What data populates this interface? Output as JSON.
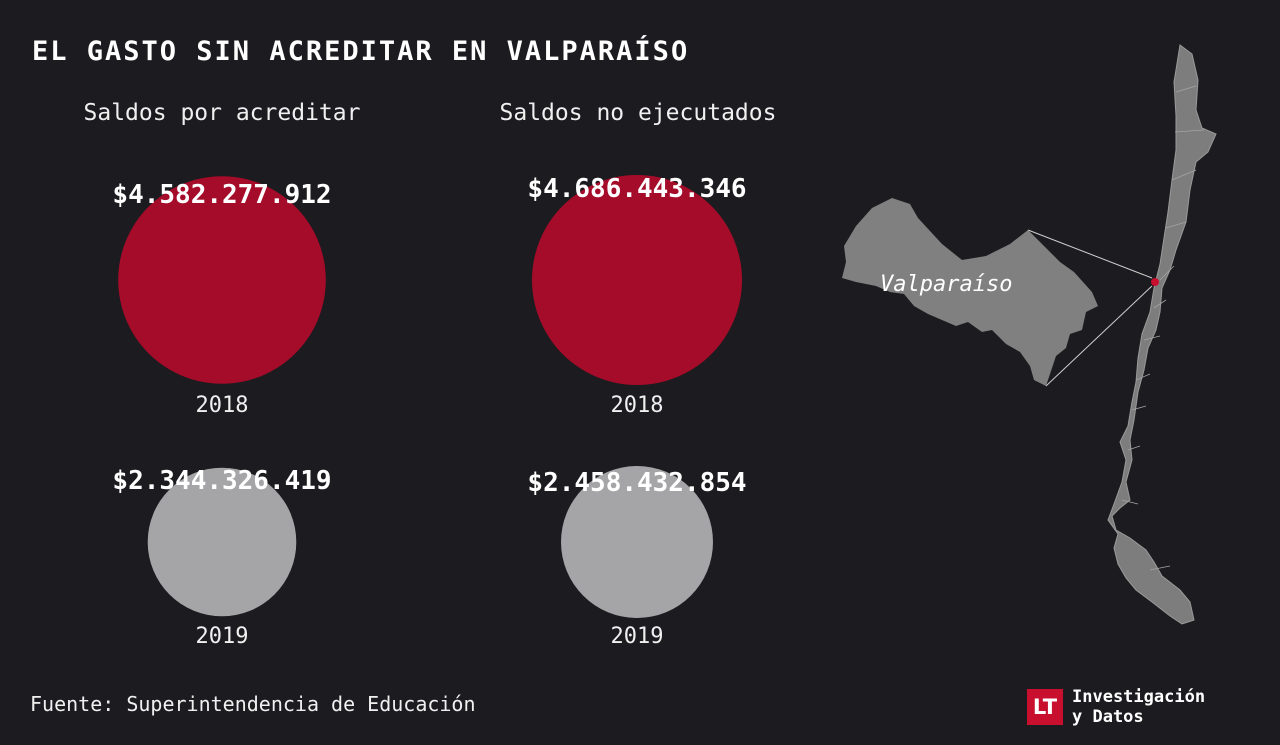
{
  "title": "EL GASTO SIN ACREDITAR EN VALPARAÍSO",
  "chart_data": [
    {
      "type": "bubble",
      "title": "Saldos por acreditar",
      "categories": [
        "2018",
        "2019"
      ],
      "values": [
        4582277912,
        2344326419
      ],
      "labels": [
        "$4.582.277.912",
        "$2.344.326.419"
      ],
      "colors": [
        "#a50c29",
        "#a5a5a7"
      ]
    },
    {
      "type": "bubble",
      "title": "Saldos no ejecutados",
      "categories": [
        "2018",
        "2019"
      ],
      "values": [
        4686443346,
        2458432854
      ],
      "labels": [
        "$4.686.443.346",
        "$2.458.432.854"
      ],
      "colors": [
        "#a50c29",
        "#a5a5a7"
      ]
    }
  ],
  "map": {
    "region_label": "Valparaíso",
    "region_color": "#808080",
    "highlight_color": "#c8102e"
  },
  "source": "Fuente: Superintendencia de Educación",
  "brand": {
    "logo": "LT",
    "line1": "Investigación",
    "line2": "y Datos"
  }
}
